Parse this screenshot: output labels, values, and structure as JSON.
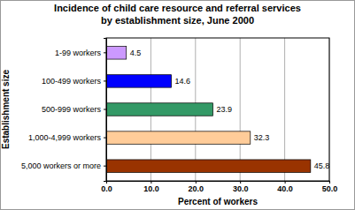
{
  "chart_data": {
    "type": "bar",
    "orientation": "horizontal",
    "title": "Incidence of child care resource and referral services",
    "subtitle": "by establishment size, June 2000",
    "x_label": "Percent of workers",
    "y_label": "Establishment size",
    "categories": [
      "1-99 workers",
      "100-499 workers",
      "500-999 workers",
      "1,000-4,999 workers",
      "5,000 workers or more"
    ],
    "values": [
      4.5,
      14.6,
      23.9,
      32.3,
      45.8
    ],
    "colors": [
      "#cc99ff",
      "#0000ff",
      "#339966",
      "#ffcc99",
      "#993300"
    ],
    "xlim": [
      0,
      50
    ],
    "xticks": [
      {
        "value": 0,
        "label": "0.0"
      },
      {
        "value": 10,
        "label": "10.0"
      },
      {
        "value": 20,
        "label": "20.0"
      },
      {
        "value": 30,
        "label": "30.0"
      },
      {
        "value": 40,
        "label": "40.0"
      },
      {
        "value": 50,
        "label": "50.0"
      }
    ],
    "grid": true,
    "data_labels": true
  }
}
